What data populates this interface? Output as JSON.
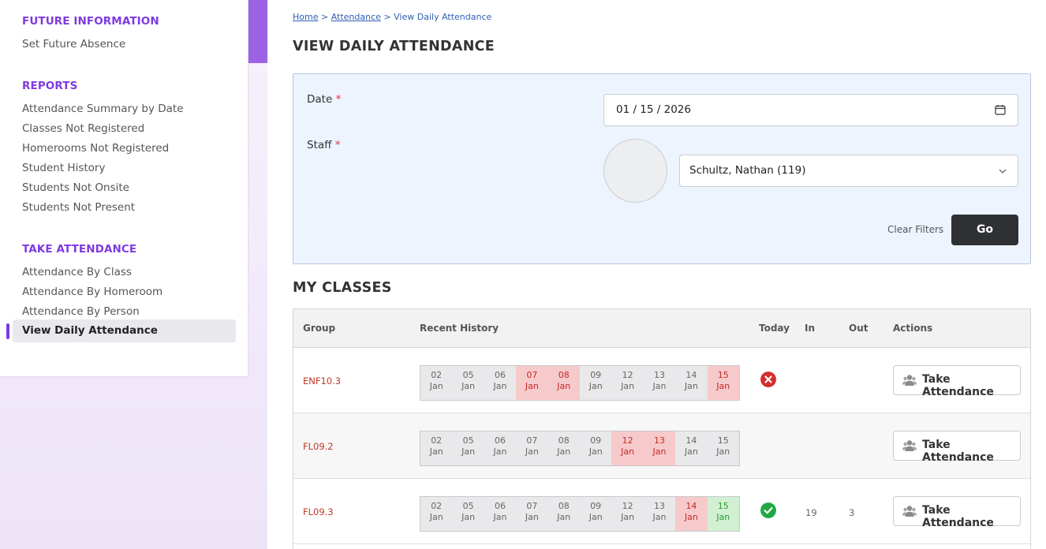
{
  "sidebar": {
    "future_heading": "FUTURE INFORMATION",
    "future_items": [
      "Set Future Absence"
    ],
    "reports_heading": "REPORTS",
    "reports_items": [
      "Attendance Summary by Date",
      "Classes Not Registered",
      "Homerooms Not Registered",
      "Student History",
      "Students Not Onsite",
      "Students Not Present"
    ],
    "take_heading": "TAKE ATTENDANCE",
    "take_items": [
      "Attendance By Class",
      "Attendance By Homeroom",
      "Attendance By Person"
    ],
    "active_item": "View Daily Attendance"
  },
  "breadcrumb": {
    "home": "Home",
    "sep1": " > ",
    "attendance": "Attendance",
    "sep2": " > ",
    "current": "View Daily Attendance"
  },
  "page_title": "VIEW DAILY ATTENDANCE",
  "filters": {
    "date_label": "Date",
    "staff_label": "Staff",
    "required_mark": "*",
    "date_value": "01 / 15 / 2026",
    "staff_value": "Schultz, Nathan (119)",
    "clear_label": "Clear Filters",
    "go_label": "Go"
  },
  "classes_title": "MY CLASSES",
  "table": {
    "headers": {
      "group": "Group",
      "history": "Recent History",
      "today": "Today",
      "in": "In",
      "out": "Out",
      "actions": "Actions"
    },
    "month": "Jan",
    "days": [
      "02",
      "05",
      "06",
      "07",
      "08",
      "09",
      "12",
      "13",
      "14",
      "15"
    ],
    "action_label": "Take Attendance",
    "rows": [
      {
        "group": "ENF10.3",
        "history": [
          "none",
          "none",
          "none",
          "absent",
          "absent",
          "none",
          "none",
          "none",
          "none",
          "absent"
        ],
        "today": "absent",
        "in": "",
        "out": ""
      },
      {
        "group": "FL09.2",
        "history": [
          "none",
          "none",
          "none",
          "none",
          "none",
          "none",
          "absent",
          "absent",
          "none",
          "none"
        ],
        "today": "",
        "in": "",
        "out": ""
      },
      {
        "group": "FL09.3",
        "history": [
          "none",
          "none",
          "none",
          "none",
          "none",
          "none",
          "none",
          "none",
          "absent",
          "present"
        ],
        "today": "present",
        "in": "19",
        "out": "3"
      }
    ]
  },
  "colors": {
    "accent": "#7e3ae0",
    "absent_bg": "#f6caca",
    "present_bg": "#d1f0d1",
    "error": "#d32f2f",
    "ok": "#22a745"
  }
}
